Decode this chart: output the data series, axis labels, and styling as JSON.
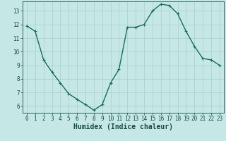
{
  "x": [
    0,
    1,
    2,
    3,
    4,
    5,
    6,
    7,
    8,
    9,
    10,
    11,
    12,
    13,
    14,
    15,
    16,
    17,
    18,
    19,
    20,
    21,
    22,
    23
  ],
  "y": [
    11.9,
    11.5,
    9.4,
    8.5,
    7.7,
    6.9,
    6.5,
    6.1,
    5.7,
    6.1,
    7.7,
    8.7,
    11.8,
    11.8,
    12.0,
    13.0,
    13.5,
    13.4,
    12.8,
    11.5,
    10.4,
    9.5,
    9.4,
    9.0
  ],
  "line_color": "#1a6b5a",
  "marker": "+",
  "marker_size": 3,
  "bg_color": "#c5e8e6",
  "grid_color": "#a8ceca",
  "xlabel": "Humidex (Indice chaleur)",
  "xlim": [
    -0.5,
    23.5
  ],
  "ylim": [
    5.5,
    13.7
  ],
  "yticks": [
    6,
    7,
    8,
    9,
    10,
    11,
    12,
    13
  ],
  "xticks": [
    0,
    1,
    2,
    3,
    4,
    5,
    6,
    7,
    8,
    9,
    10,
    11,
    12,
    13,
    14,
    15,
    16,
    17,
    18,
    19,
    20,
    21,
    22,
    23
  ],
  "tick_label_fontsize": 5.5,
  "xlabel_fontsize": 7,
  "label_color": "#1a4a42",
  "linewidth": 1.0,
  "markeredgewidth": 0.8
}
